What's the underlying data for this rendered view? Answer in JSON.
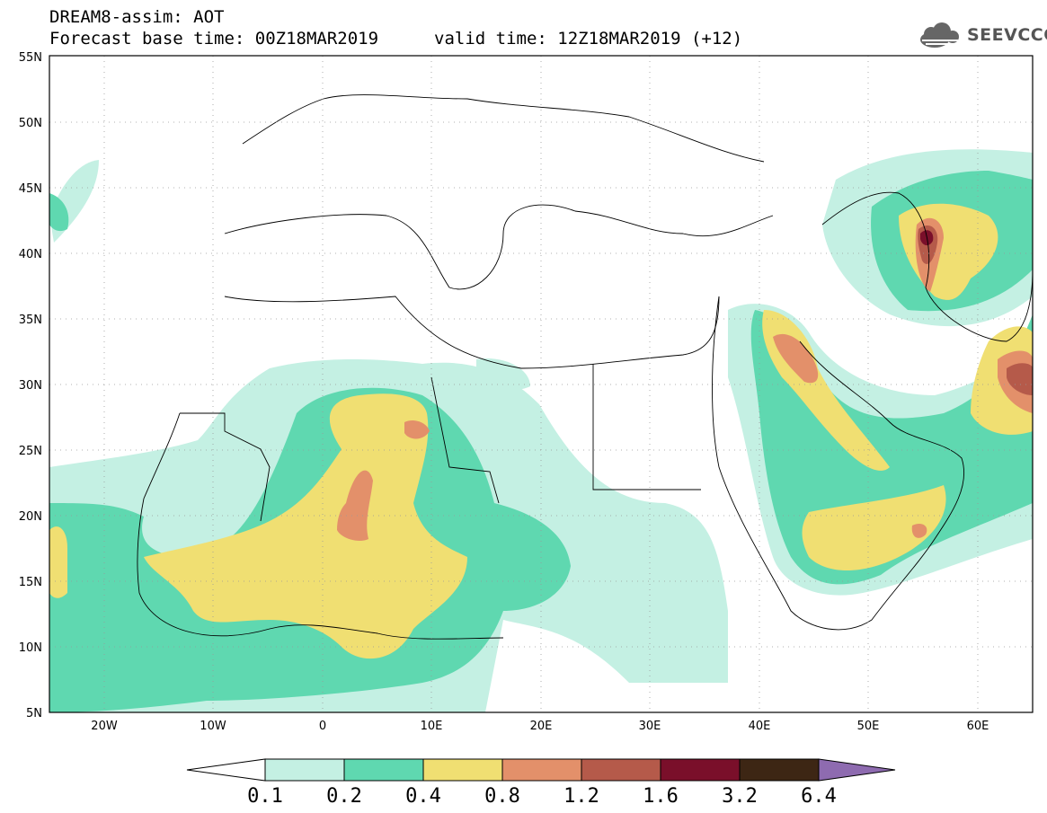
{
  "header": {
    "title": "DREAM8-assim: AOT",
    "base_time": "Forecast base time: 00Z18MAR2019",
    "valid_time": "valid time: 12Z18MAR2019 (+12)"
  },
  "logo": {
    "text": "SEEVCCC",
    "icon": "cloud-icon"
  },
  "axes": {
    "lat_ticks": [
      "55N",
      "50N",
      "45N",
      "40N",
      "35N",
      "30N",
      "25N",
      "20N",
      "15N",
      "10N",
      "5N"
    ],
    "lon_ticks": [
      "20W",
      "10W",
      "0",
      "10E",
      "20E",
      "30E",
      "40E",
      "50E",
      "60E"
    ],
    "lon_range": [
      -25,
      65
    ],
    "lat_range": [
      5,
      55
    ]
  },
  "colorbar": {
    "labels": [
      "0.1",
      "0.2",
      "0.4",
      "0.8",
      "1.2",
      "1.6",
      "3.2",
      "6.4"
    ],
    "colors": [
      "#c4f0e3",
      "#5fd8b0",
      "#f0df72",
      "#e3906a",
      "#b55a4a",
      "#7a0f2a",
      "#3d2614",
      "#8e6bb0"
    ],
    "under_color": "#ffffff"
  }
}
